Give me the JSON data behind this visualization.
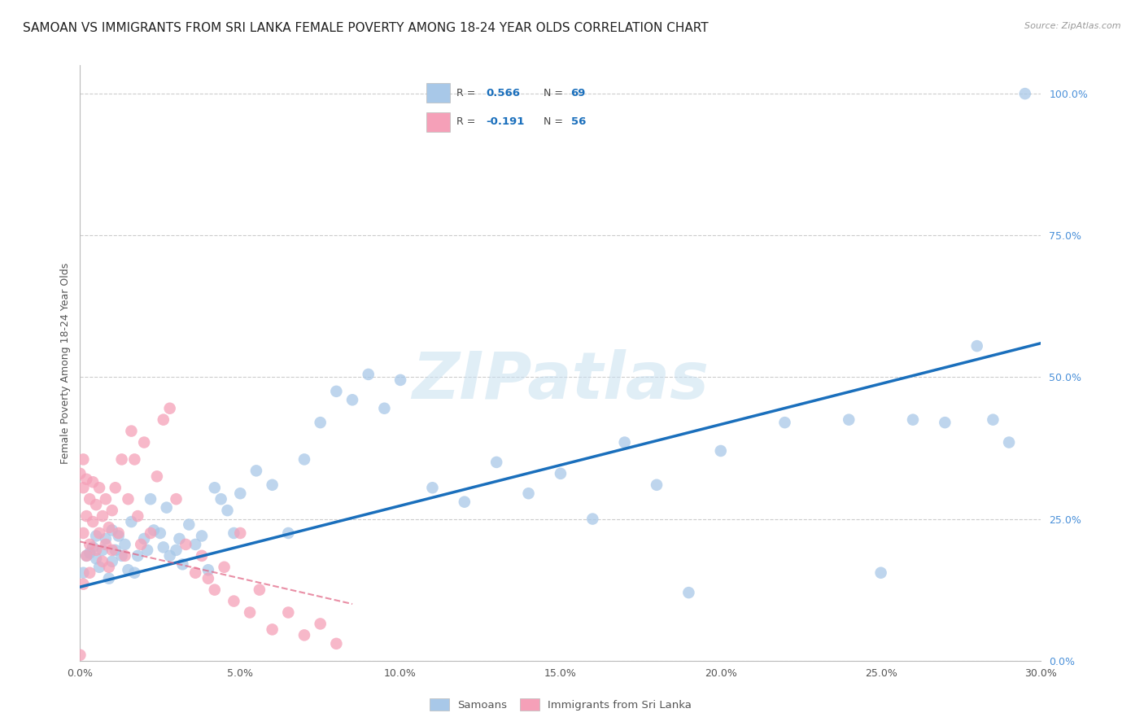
{
  "title": "SAMOAN VS IMMIGRANTS FROM SRI LANKA FEMALE POVERTY AMONG 18-24 YEAR OLDS CORRELATION CHART",
  "source": "Source: ZipAtlas.com",
  "ylabel": "Female Poverty Among 18-24 Year Olds",
  "x_range": [
    0.0,
    0.3
  ],
  "y_range": [
    0.0,
    1.05
  ],
  "samoans_R": 0.566,
  "samoans_N": 69,
  "sri_lanka_R": -0.191,
  "sri_lanka_N": 56,
  "samoans_color": "#a8c8e8",
  "sri_lanka_color": "#f5a0b8",
  "samoans_line_color": "#1a6fbc",
  "sri_lanka_line_color": "#e06080",
  "legend_label_samoans": "Samoans",
  "legend_label_sri_lanka": "Immigrants from Sri Lanka",
  "watermark": "ZIPatlas",
  "title_fontsize": 11,
  "axis_label_fontsize": 9,
  "tick_fontsize": 9,
  "samoans_x": [
    0.001,
    0.002,
    0.003,
    0.004,
    0.005,
    0.005,
    0.006,
    0.007,
    0.008,
    0.009,
    0.01,
    0.01,
    0.011,
    0.012,
    0.013,
    0.014,
    0.015,
    0.016,
    0.017,
    0.018,
    0.02,
    0.021,
    0.022,
    0.023,
    0.025,
    0.026,
    0.027,
    0.028,
    0.03,
    0.031,
    0.032,
    0.034,
    0.036,
    0.038,
    0.04,
    0.042,
    0.044,
    0.046,
    0.048,
    0.05,
    0.055,
    0.06,
    0.065,
    0.07,
    0.075,
    0.08,
    0.085,
    0.09,
    0.095,
    0.1,
    0.11,
    0.12,
    0.13,
    0.14,
    0.15,
    0.16,
    0.17,
    0.18,
    0.19,
    0.2,
    0.22,
    0.24,
    0.25,
    0.26,
    0.27,
    0.28,
    0.285,
    0.29,
    0.295
  ],
  "samoans_y": [
    0.155,
    0.185,
    0.19,
    0.2,
    0.18,
    0.22,
    0.165,
    0.195,
    0.215,
    0.145,
    0.175,
    0.23,
    0.195,
    0.22,
    0.185,
    0.205,
    0.16,
    0.245,
    0.155,
    0.185,
    0.215,
    0.195,
    0.285,
    0.23,
    0.225,
    0.2,
    0.27,
    0.185,
    0.195,
    0.215,
    0.17,
    0.24,
    0.205,
    0.22,
    0.16,
    0.305,
    0.285,
    0.265,
    0.225,
    0.295,
    0.335,
    0.31,
    0.225,
    0.355,
    0.42,
    0.475,
    0.46,
    0.505,
    0.445,
    0.495,
    0.305,
    0.28,
    0.35,
    0.295,
    0.33,
    0.25,
    0.385,
    0.31,
    0.12,
    0.37,
    0.42,
    0.425,
    0.155,
    0.425,
    0.42,
    0.555,
    0.425,
    0.385,
    1.0
  ],
  "sri_lanka_x": [
    0.0,
    0.0,
    0.001,
    0.001,
    0.001,
    0.001,
    0.002,
    0.002,
    0.002,
    0.003,
    0.003,
    0.003,
    0.004,
    0.004,
    0.005,
    0.005,
    0.006,
    0.006,
    0.007,
    0.007,
    0.008,
    0.008,
    0.009,
    0.009,
    0.01,
    0.01,
    0.011,
    0.012,
    0.013,
    0.014,
    0.015,
    0.016,
    0.017,
    0.018,
    0.019,
    0.02,
    0.022,
    0.024,
    0.026,
    0.028,
    0.03,
    0.033,
    0.036,
    0.038,
    0.04,
    0.042,
    0.045,
    0.048,
    0.05,
    0.053,
    0.056,
    0.06,
    0.065,
    0.07,
    0.075,
    0.08
  ],
  "sri_lanka_y": [
    0.33,
    0.01,
    0.305,
    0.355,
    0.225,
    0.135,
    0.255,
    0.32,
    0.185,
    0.285,
    0.205,
    0.155,
    0.245,
    0.315,
    0.195,
    0.275,
    0.225,
    0.305,
    0.175,
    0.255,
    0.205,
    0.285,
    0.165,
    0.235,
    0.265,
    0.195,
    0.305,
    0.225,
    0.355,
    0.185,
    0.285,
    0.405,
    0.355,
    0.255,
    0.205,
    0.385,
    0.225,
    0.325,
    0.425,
    0.445,
    0.285,
    0.205,
    0.155,
    0.185,
    0.145,
    0.125,
    0.165,
    0.105,
    0.225,
    0.085,
    0.125,
    0.055,
    0.085,
    0.045,
    0.065,
    0.03
  ],
  "blue_line_x0": 0.0,
  "blue_line_y0": 0.13,
  "blue_line_x1": 0.3,
  "blue_line_y1": 0.56,
  "pink_line_x0": 0.0,
  "pink_line_y0": 0.21,
  "pink_line_x1": 0.085,
  "pink_line_y1": 0.1
}
